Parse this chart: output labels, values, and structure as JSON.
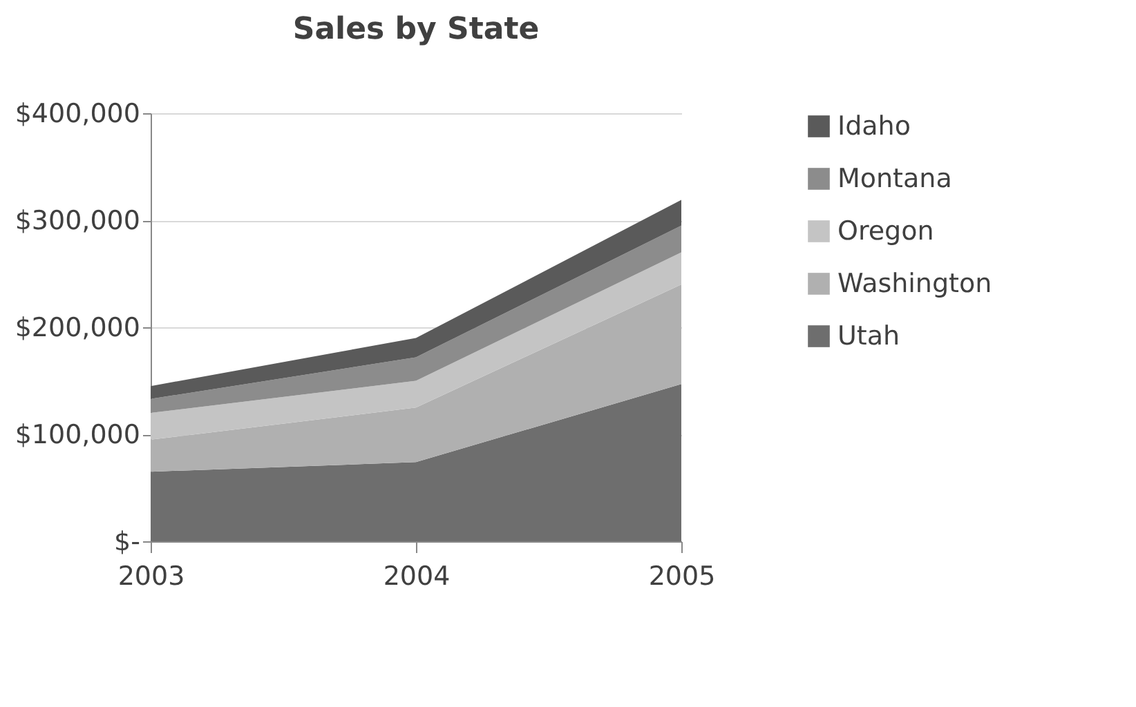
{
  "chart_data": {
    "type": "area",
    "title": "Sales by State",
    "categories": [
      "2003",
      "2004",
      "2005"
    ],
    "stacked": true,
    "series": [
      {
        "name": "Utah",
        "color": "#6e6e6e",
        "values": [
          65000,
          74000,
          147000
        ]
      },
      {
        "name": "Washington",
        "color": "#b0b0b0",
        "values": [
          30000,
          51000,
          93000
        ]
      },
      {
        "name": "Oregon",
        "color": "#c4c4c4",
        "values": [
          25000,
          25000,
          30000
        ]
      },
      {
        "name": "Montana",
        "color": "#8c8c8c",
        "values": [
          13000,
          22000,
          25000
        ]
      },
      {
        "name": "Idaho",
        "color": "#5a5a5a",
        "values": [
          12000,
          18000,
          24000
        ]
      }
    ],
    "ylim": [
      0,
      400000
    ],
    "yticks": [
      {
        "value": 0,
        "label": "$-"
      },
      {
        "value": 100000,
        "label": "$100,000"
      },
      {
        "value": 200000,
        "label": "$200,000"
      },
      {
        "value": 300000,
        "label": "$300,000"
      },
      {
        "value": 400000,
        "label": "$400,000"
      }
    ],
    "grid": "y",
    "legend": "right"
  }
}
